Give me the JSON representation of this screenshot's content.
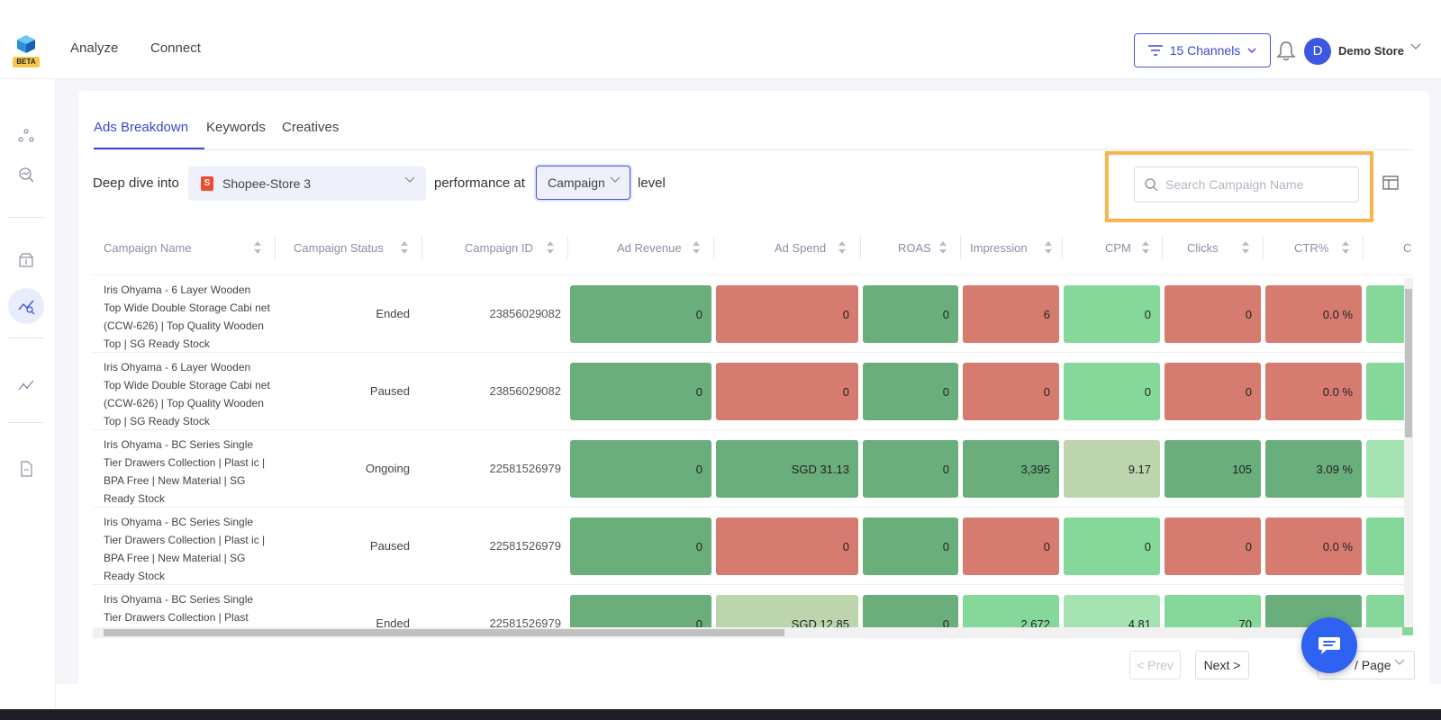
{
  "app": {
    "logo_badge": "BETA"
  },
  "nav": {
    "items": [
      {
        "label": "Analyze"
      },
      {
        "label": "Connect"
      }
    ]
  },
  "header": {
    "channels_label": "15 Channels",
    "avatar_initial": "D",
    "store_name": "Demo Store"
  },
  "tabs": [
    {
      "label": "Ads Breakdown",
      "active": true
    },
    {
      "label": "Keywords"
    },
    {
      "label": "Creatives"
    }
  ],
  "filters": {
    "deep_dive_label": "Deep dive into",
    "store_value": "Shopee-Store 3",
    "performance_label": "performance at",
    "level_value": "Campaign",
    "level_suffix": "level"
  },
  "search": {
    "placeholder": "Search Campaign Name"
  },
  "table": {
    "columns": [
      "Campaign Name",
      "Campaign Status",
      "Campaign ID",
      "Ad Revenue",
      "Ad Spend",
      "ROAS",
      "Impression",
      "CPM",
      "Clicks",
      "CTR%",
      "C"
    ],
    "rows": [
      {
        "name": "Iris Ohyama - 6 Layer Wooden Top Wide Double Storage Cabi net (CCW-626) | Top Quality Wooden Top | SG Ready Stock",
        "status": "Ended",
        "id": "23856029082",
        "ad_revenue": "0",
        "ad_spend": "0",
        "roas": "0",
        "impression": "6",
        "cpm": "0",
        "clicks": "0",
        "ctr": "0.0 %"
      },
      {
        "name": "Iris Ohyama - 6 Layer Wooden Top Wide Double Storage Cabi net (CCW-626) | Top Quality Wooden Top | SG Ready Stock",
        "status": "Paused",
        "id": "23856029082",
        "ad_revenue": "0",
        "ad_spend": "0",
        "roas": "0",
        "impression": "0",
        "cpm": "0",
        "clicks": "0",
        "ctr": "0.0 %"
      },
      {
        "name": "Iris Ohyama - BC Series Single Tier Drawers Collection | Plast ic | BPA Free | New Material | SG Ready Stock",
        "status": "Ongoing",
        "id": "22581526979",
        "ad_revenue": "0",
        "ad_spend": "SGD 31.13",
        "roas": "0",
        "impression": "3,395",
        "cpm": "9.17",
        "clicks": "105",
        "ctr": "3.09 %"
      },
      {
        "name": "Iris Ohyama - BC Series Single Tier Drawers Collection | Plast ic | BPA Free | New Material | SG Ready Stock",
        "status": "Paused",
        "id": "22581526979",
        "ad_revenue": "0",
        "ad_spend": "0",
        "roas": "0",
        "impression": "0",
        "cpm": "0",
        "clicks": "0",
        "ctr": "0.0 %"
      },
      {
        "name": "Iris Ohyama - BC Series Single Tier Drawers Collection | Plast",
        "status": "Ended",
        "id": "22581526979",
        "ad_revenue": "0",
        "ad_spend": "SGD 12.85",
        "roas": "0",
        "impression": "2,672",
        "cpm": "4.81",
        "clicks": "70",
        "ctr": ""
      }
    ]
  },
  "pagination": {
    "prev_label": "< Prev",
    "next_label": "Next >",
    "page_size_label": "/ Page"
  },
  "colors": {
    "accent": "#3c48d0",
    "highlight": "#f8b54a",
    "good": "#6aae7c",
    "bad": "#d67b70"
  }
}
